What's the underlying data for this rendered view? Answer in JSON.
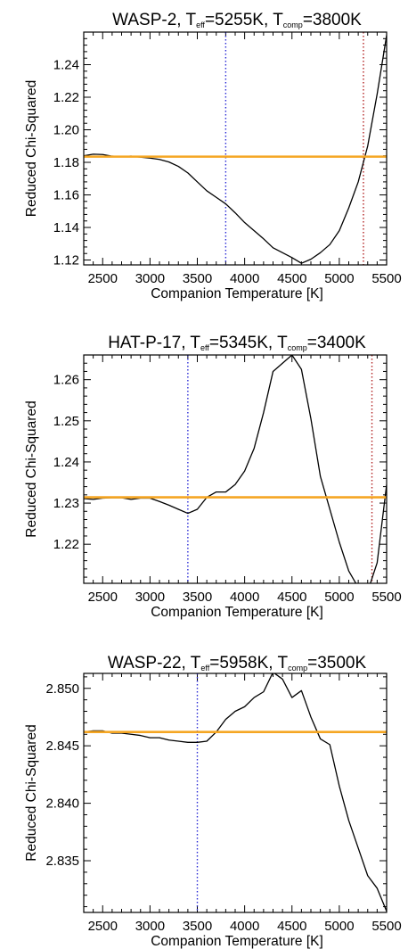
{
  "figure": {
    "background": "#ffffff"
  },
  "chart_data": [
    {
      "type": "line",
      "title_parts": [
        {
          "text": "WASP-2, T",
          "sub": false
        },
        {
          "text": "eff",
          "sub": true
        },
        {
          "text": "=5255K, T",
          "sub": false
        },
        {
          "text": "comp",
          "sub": true
        },
        {
          "text": "=3800K",
          "sub": false
        }
      ],
      "xlabel": "Companion Temperature [K]",
      "ylabel": "Reduced Chi-Squared",
      "xlim": [
        2300,
        5500
      ],
      "ylim": [
        1.117,
        1.26
      ],
      "xticks": [
        2500,
        3000,
        3500,
        4000,
        4500,
        5000,
        5500
      ],
      "yticks": [
        1.12,
        1.14,
        1.16,
        1.18,
        1.2,
        1.22,
        1.24
      ],
      "ytick_labels": [
        "1.12",
        "1.14",
        "1.16",
        "1.18",
        "1.20",
        "1.22",
        "1.24"
      ],
      "x": [
        2300,
        2400,
        2500,
        2600,
        2700,
        2800,
        2900,
        3000,
        3100,
        3200,
        3300,
        3400,
        3500,
        3600,
        3700,
        3800,
        3900,
        4000,
        4100,
        4200,
        4300,
        4400,
        4500,
        4600,
        4700,
        4800,
        4900,
        5000,
        5100,
        5200,
        5300,
        5400,
        5500
      ],
      "y": [
        1.184,
        1.185,
        1.1848,
        1.1838,
        1.1835,
        1.1838,
        1.1832,
        1.1826,
        1.1818,
        1.1802,
        1.1775,
        1.1735,
        1.168,
        1.1625,
        1.1585,
        1.1545,
        1.149,
        1.143,
        1.138,
        1.133,
        1.1275,
        1.1245,
        1.1215,
        1.118,
        1.1205,
        1.1245,
        1.1295,
        1.138,
        1.152,
        1.168,
        1.19,
        1.222,
        1.258
      ],
      "hline": {
        "y": 1.1835,
        "color": "#f5a623"
      },
      "vlines": [
        {
          "x": 3800,
          "color": "#2b2bd6"
        },
        {
          "x": 5255,
          "color": "#b22222"
        }
      ],
      "line_color": "#000000"
    },
    {
      "type": "line",
      "title_parts": [
        {
          "text": "HAT-P-17, T",
          "sub": false
        },
        {
          "text": "eff",
          "sub": true
        },
        {
          "text": "=5345K, T",
          "sub": false
        },
        {
          "text": "comp",
          "sub": true
        },
        {
          "text": "=3400K",
          "sub": false
        }
      ],
      "xlabel": "Companion Temperature [K]",
      "ylabel": "Reduced Chi-Squared",
      "xlim": [
        2300,
        5500
      ],
      "ylim": [
        1.2105,
        1.266
      ],
      "xticks": [
        2500,
        3000,
        3500,
        4000,
        4500,
        5000,
        5500
      ],
      "yticks": [
        1.22,
        1.23,
        1.24,
        1.25,
        1.26
      ],
      "ytick_labels": [
        "1.22",
        "1.23",
        "1.24",
        "1.25",
        "1.26"
      ],
      "x": [
        2300,
        2400,
        2500,
        2600,
        2700,
        2800,
        2900,
        3000,
        3100,
        3200,
        3300,
        3400,
        3500,
        3600,
        3700,
        3800,
        3900,
        4000,
        4100,
        4200,
        4300,
        4400,
        4500,
        4600,
        4700,
        4800,
        4900,
        5000,
        5100,
        5200,
        5300,
        5400,
        5500
      ],
      "y": [
        1.2311,
        1.2309,
        1.2312,
        1.2313,
        1.2313,
        1.2309,
        1.2312,
        1.2312,
        1.2304,
        1.2295,
        1.2285,
        1.2275,
        1.2285,
        1.2314,
        1.2327,
        1.2327,
        1.2345,
        1.2378,
        1.2433,
        1.252,
        1.262,
        1.264,
        1.266,
        1.2625,
        1.2505,
        1.2365,
        1.2285,
        1.2205,
        1.2135,
        1.2095,
        1.2085,
        1.2155,
        1.2345
      ],
      "hline": {
        "y": 1.2314,
        "color": "#f5a623"
      },
      "vlines": [
        {
          "x": 3400,
          "color": "#2b2bd6"
        },
        {
          "x": 5345,
          "color": "#b22222"
        }
      ],
      "line_color": "#000000"
    },
    {
      "type": "line",
      "title_parts": [
        {
          "text": "WASP-22, T",
          "sub": false
        },
        {
          "text": "eff",
          "sub": true
        },
        {
          "text": "=5958K, T",
          "sub": false
        },
        {
          "text": "comp",
          "sub": true
        },
        {
          "text": "=3500K",
          "sub": false
        }
      ],
      "xlabel": "Companion Temperature [K]",
      "ylabel": "Reduced Chi-Squared",
      "xlim": [
        2300,
        5500
      ],
      "ylim": [
        2.8305,
        2.8513
      ],
      "xticks": [
        2500,
        3000,
        3500,
        4000,
        4500,
        5000,
        5500
      ],
      "yticks": [
        2.835,
        2.84,
        2.845,
        2.85
      ],
      "ytick_labels": [
        "2.835",
        "2.840",
        "2.845",
        "2.850"
      ],
      "x": [
        2300,
        2400,
        2500,
        2600,
        2700,
        2800,
        2900,
        3000,
        3100,
        3200,
        3300,
        3400,
        3500,
        3600,
        3700,
        3800,
        3900,
        4000,
        4100,
        4200,
        4300,
        4400,
        4500,
        4600,
        4700,
        4800,
        4900,
        5000,
        5100,
        5200,
        5300,
        5400,
        5500
      ],
      "y": [
        2.8462,
        2.8463,
        2.8463,
        2.8461,
        2.8461,
        2.846,
        2.8459,
        2.8457,
        2.8457,
        2.8455,
        2.8454,
        2.8453,
        2.8453,
        2.8454,
        2.8462,
        2.8473,
        2.848,
        2.8484,
        2.8492,
        2.8497,
        2.8514,
        2.8508,
        2.8492,
        2.8498,
        2.8475,
        2.8456,
        2.8451,
        2.8415,
        2.8385,
        2.8361,
        2.8337,
        2.8326,
        2.8306
      ],
      "hline": {
        "y": 2.8462,
        "color": "#f5a623"
      },
      "vlines": [
        {
          "x": 3500,
          "color": "#2b2bd6"
        }
      ],
      "line_color": "#000000"
    }
  ]
}
